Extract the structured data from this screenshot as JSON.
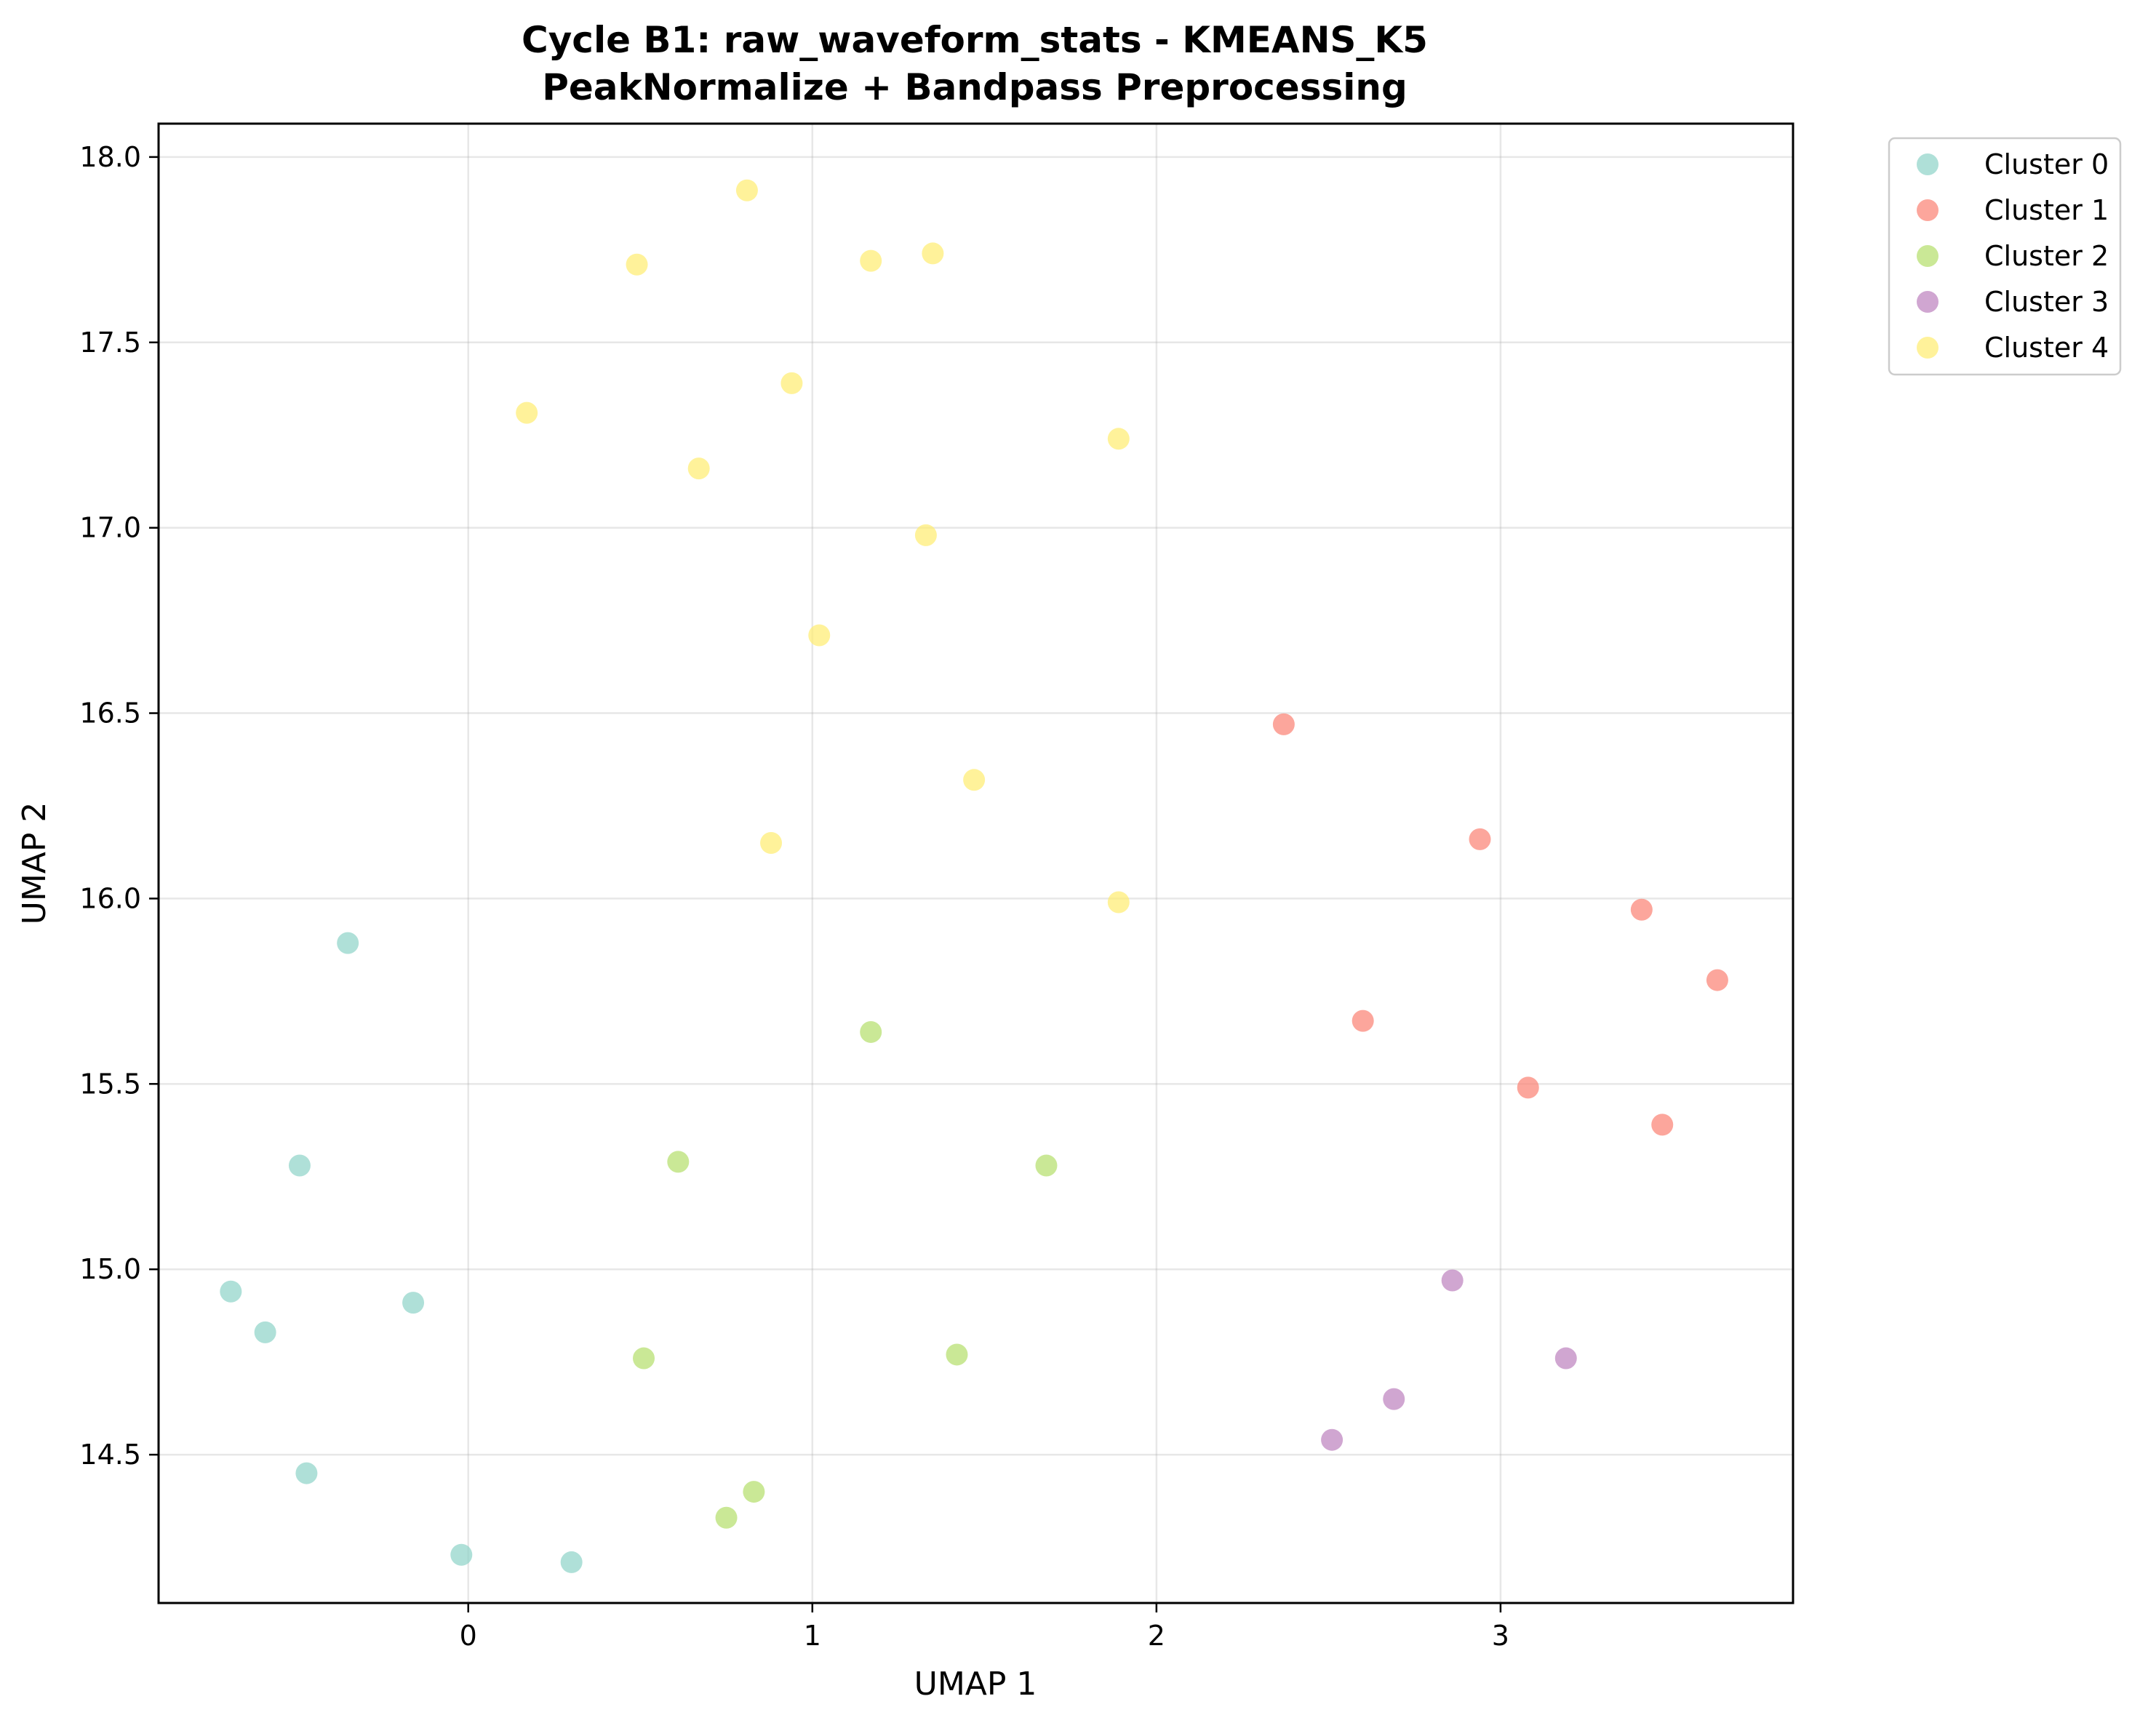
{
  "chart_data": {
    "type": "scatter",
    "title_lines": [
      "Cycle B1: raw_waveform_stats - KMEANS_K5",
      "PeakNormalize + Bandpass Preprocessing"
    ],
    "xlabel": "UMAP 1",
    "ylabel": "UMAP 2",
    "xlim": [
      -0.9,
      3.85
    ],
    "ylim": [
      14.1,
      18.09
    ],
    "xticks": [
      0,
      1,
      2,
      3
    ],
    "yticks": [
      14.5,
      15.0,
      15.5,
      16.0,
      16.5,
      17.0,
      17.5,
      18.0
    ],
    "xtick_labels": [
      "0",
      "1",
      "2",
      "3"
    ],
    "ytick_labels": [
      "14.5",
      "15.0",
      "15.5",
      "16.0",
      "16.5",
      "17.0",
      "17.5",
      "18.0"
    ],
    "grid": true,
    "legend_position": "outside-top-right",
    "series": [
      {
        "name": "Cluster 0",
        "color": "#8dd3c7",
        "points": [
          [
            -0.35,
            15.88
          ],
          [
            -0.49,
            15.28
          ],
          [
            -0.69,
            14.94
          ],
          [
            -0.59,
            14.83
          ],
          [
            -0.16,
            14.91
          ],
          [
            -0.47,
            14.45
          ],
          [
            -0.02,
            14.23
          ],
          [
            0.3,
            14.21
          ]
        ]
      },
      {
        "name": "Cluster 1",
        "color": "#fb8072",
        "points": [
          [
            2.37,
            16.47
          ],
          [
            2.94,
            16.16
          ],
          [
            3.41,
            15.97
          ],
          [
            3.63,
            15.78
          ],
          [
            2.6,
            15.67
          ],
          [
            3.08,
            15.49
          ],
          [
            3.47,
            15.39
          ]
        ]
      },
      {
        "name": "Cluster 2",
        "color": "#b3de69",
        "points": [
          [
            1.17,
            15.64
          ],
          [
            0.61,
            15.29
          ],
          [
            1.68,
            15.28
          ],
          [
            0.51,
            14.76
          ],
          [
            1.42,
            14.77
          ],
          [
            0.83,
            14.4
          ],
          [
            0.75,
            14.33
          ]
        ]
      },
      {
        "name": "Cluster 3",
        "color": "#bc80bd",
        "points": [
          [
            2.86,
            14.97
          ],
          [
            3.19,
            14.76
          ],
          [
            2.69,
            14.65
          ],
          [
            2.51,
            14.54
          ]
        ]
      },
      {
        "name": "Cluster 4",
        "color": "#ffed6f",
        "points": [
          [
            0.81,
            17.91
          ],
          [
            0.49,
            17.71
          ],
          [
            1.17,
            17.72
          ],
          [
            1.35,
            17.74
          ],
          [
            0.94,
            17.39
          ],
          [
            0.17,
            17.31
          ],
          [
            1.89,
            17.24
          ],
          [
            0.67,
            17.16
          ],
          [
            1.33,
            16.98
          ],
          [
            1.02,
            16.71
          ],
          [
            1.47,
            16.32
          ],
          [
            0.88,
            16.15
          ],
          [
            1.89,
            15.99
          ]
        ]
      }
    ]
  }
}
